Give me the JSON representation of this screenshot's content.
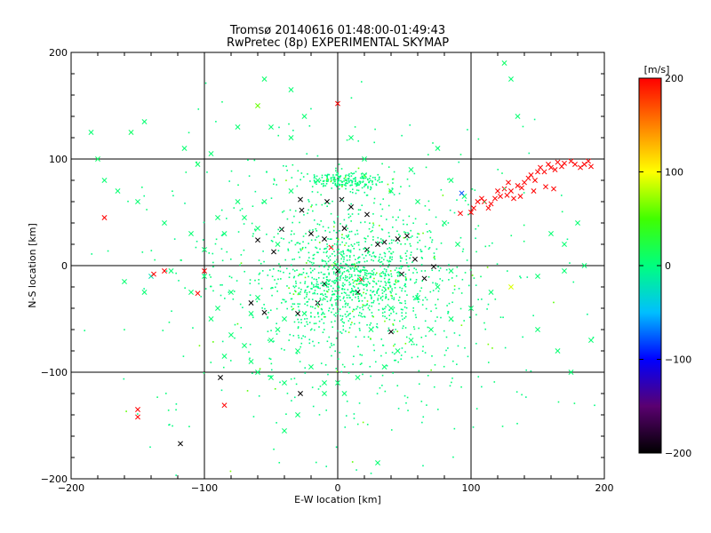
{
  "chart_data": {
    "type": "scatter",
    "title": "Tromsø 20140616 01:48:00-01:49:43",
    "subtitle": "RwPretec (8p) EXPERIMENTAL SKYMAP",
    "xlabel": "E-W location [km]",
    "ylabel": "N-S location [km]",
    "xlim": [
      -200,
      200
    ],
    "ylim": [
      -200,
      200
    ],
    "xticks": [
      "−200",
      "−100",
      "0",
      "100",
      "200"
    ],
    "yticks": [
      "−200",
      "−100",
      "0",
      "100",
      "200"
    ],
    "xtick_values": [
      -200,
      -100,
      0,
      100,
      200
    ],
    "ytick_values": [
      -200,
      -100,
      0,
      100,
      200
    ],
    "grid_lines": [
      -100,
      0,
      100
    ],
    "colorbar": {
      "label": "[m/s]",
      "range": [
        -200,
        200
      ],
      "tick_values": [
        200,
        100,
        0,
        -100,
        -200
      ],
      "tick_labels": [
        "200",
        "100",
        "0",
        "−100",
        "−200"
      ],
      "colormap": [
        "#000000",
        "#5a0070",
        "#0000ff",
        "#00bfff",
        "#00ff7f",
        "#40ff00",
        "#ffff00",
        "#ff8000",
        "#ff0000"
      ]
    },
    "series": [
      {
        "marker": "x",
        "note_values": "velocity in m/s",
        "points": [
          [
            -155,
            125,
            10
          ],
          [
            -145,
            135,
            5
          ],
          [
            -185,
            125,
            5
          ],
          [
            -115,
            110,
            5
          ],
          [
            -95,
            105,
            5
          ],
          [
            -105,
            95,
            8
          ],
          [
            -75,
            130,
            5
          ],
          [
            -55,
            175,
            8
          ],
          [
            -35,
            165,
            5
          ],
          [
            -60,
            150,
            60
          ],
          [
            -50,
            130,
            5
          ],
          [
            -35,
            120,
            5
          ],
          [
            -25,
            140,
            5
          ],
          [
            0,
            152,
            200
          ],
          [
            10,
            120,
            5
          ],
          [
            20,
            100,
            5
          ],
          [
            55,
            90,
            5
          ],
          [
            75,
            110,
            5
          ],
          [
            85,
            80,
            5
          ],
          [
            95,
            65,
            5
          ],
          [
            125,
            190,
            10
          ],
          [
            135,
            140,
            5
          ],
          [
            130,
            175,
            5
          ],
          [
            -180,
            100,
            10
          ],
          [
            -175,
            80,
            5
          ],
          [
            -165,
            70,
            5
          ],
          [
            -150,
            60,
            5
          ],
          [
            -130,
            40,
            5
          ],
          [
            -110,
            30,
            5
          ],
          [
            -90,
            45,
            5
          ],
          [
            -75,
            60,
            5
          ],
          [
            -60,
            35,
            5
          ],
          [
            -45,
            20,
            5
          ],
          [
            -140,
            -10,
            -20
          ],
          [
            -125,
            -5,
            5
          ],
          [
            -100,
            -10,
            5
          ],
          [
            -80,
            -25,
            5
          ],
          [
            -90,
            -40,
            5
          ],
          [
            -60,
            -30,
            5
          ],
          [
            -40,
            -50,
            5
          ],
          [
            -175,
            45,
            200
          ],
          [
            -138,
            -8,
            200
          ],
          [
            -100,
            -5,
            200
          ],
          [
            -160,
            -15,
            5
          ],
          [
            -145,
            -25,
            5
          ],
          [
            -65,
            -45,
            5
          ],
          [
            -50,
            -70,
            5
          ],
          [
            -30,
            -80,
            5
          ],
          [
            -20,
            -95,
            5
          ],
          [
            -10,
            -110,
            5
          ],
          [
            5,
            -120,
            5
          ],
          [
            15,
            -105,
            5
          ],
          [
            35,
            -95,
            5
          ],
          [
            45,
            -80,
            5
          ],
          [
            55,
            -70,
            5
          ],
          [
            70,
            -60,
            5
          ],
          [
            85,
            -50,
            5
          ],
          [
            100,
            -40,
            5
          ],
          [
            115,
            -25,
            5
          ],
          [
            130,
            -20,
            90
          ],
          [
            150,
            -10,
            5
          ],
          [
            170,
            -5,
            5
          ],
          [
            185,
            0,
            5
          ],
          [
            180,
            40,
            5
          ],
          [
            170,
            20,
            5
          ],
          [
            160,
            30,
            5
          ],
          [
            150,
            -60,
            5
          ],
          [
            165,
            -80,
            5
          ],
          [
            175,
            -100,
            5
          ],
          [
            190,
            -70,
            5
          ],
          [
            -40,
            -155,
            5
          ],
          [
            -30,
            -140,
            5
          ],
          [
            -10,
            -120,
            5
          ],
          [
            0,
            -110,
            5
          ],
          [
            30,
            -185,
            5
          ],
          [
            -150,
            -135,
            200
          ],
          [
            -150,
            -142,
            200
          ],
          [
            -118,
            -167,
            -200
          ],
          [
            -88,
            -105,
            -200
          ],
          [
            -28,
            -120,
            -200
          ],
          [
            -30,
            -45,
            -200
          ],
          [
            -10,
            -17,
            -200
          ],
          [
            3,
            62,
            -200
          ],
          [
            22,
            15,
            -200
          ],
          [
            40,
            -62,
            -200
          ],
          [
            58,
            6,
            -200
          ],
          [
            72,
            -1,
            -200
          ],
          [
            -27,
            52,
            -200
          ],
          [
            93,
            68,
            -80
          ],
          [
            92,
            49,
            200
          ],
          [
            18,
            -13,
            200
          ],
          [
            -5,
            17,
            200
          ],
          [
            -25,
            -45,
            5
          ],
          [
            -45,
            -60,
            5
          ],
          [
            -70,
            -75,
            5
          ],
          [
            -85,
            -85,
            5
          ],
          [
            -60,
            -100,
            5
          ],
          [
            -40,
            -110,
            5
          ],
          [
            25,
            -60,
            5
          ],
          [
            40,
            -40,
            5
          ],
          [
            60,
            -30,
            5
          ],
          [
            75,
            -20,
            5
          ],
          [
            85,
            -5,
            5
          ],
          [
            90,
            20,
            5
          ],
          [
            80,
            40,
            5
          ],
          [
            60,
            60,
            5
          ],
          [
            40,
            70,
            5
          ],
          [
            20,
            85,
            5
          ],
          [
            -15,
            80,
            5
          ],
          [
            -35,
            70,
            5
          ],
          [
            -55,
            60,
            5
          ],
          [
            -70,
            45,
            5
          ],
          [
            -85,
            30,
            5
          ],
          [
            -100,
            15,
            5
          ],
          [
            -110,
            -25,
            5
          ],
          [
            -95,
            -50,
            5
          ],
          [
            -80,
            -65,
            5
          ],
          [
            -65,
            -90,
            5
          ],
          [
            -50,
            -105,
            5
          ],
          [
            100,
            50,
            200
          ],
          [
            102,
            54,
            200
          ],
          [
            110,
            60,
            200
          ],
          [
            115,
            58,
            200
          ],
          [
            108,
            63,
            200
          ],
          [
            118,
            63,
            200
          ],
          [
            122,
            65,
            200
          ],
          [
            120,
            70,
            200
          ],
          [
            125,
            72,
            200
          ],
          [
            128,
            78,
            200
          ],
          [
            130,
            70,
            200
          ],
          [
            135,
            75,
            200
          ],
          [
            138,
            73,
            200
          ],
          [
            140,
            78,
            200
          ],
          [
            143,
            82,
            200
          ],
          [
            145,
            85,
            200
          ],
          [
            148,
            80,
            200
          ],
          [
            150,
            88,
            200
          ],
          [
            152,
            92,
            200
          ],
          [
            155,
            88,
            200
          ],
          [
            158,
            95,
            200
          ],
          [
            160,
            92,
            200
          ],
          [
            163,
            90,
            200
          ],
          [
            165,
            97,
            200
          ],
          [
            168,
            93,
            200
          ],
          [
            170,
            96,
            200
          ],
          [
            175,
            98,
            200
          ],
          [
            178,
            95,
            200
          ],
          [
            182,
            92,
            200
          ],
          [
            185,
            95,
            200
          ],
          [
            188,
            98,
            200
          ],
          [
            190,
            93,
            200
          ],
          [
            156,
            74,
            200
          ],
          [
            162,
            72,
            200
          ],
          [
            147,
            70,
            200
          ],
          [
            137,
            65,
            200
          ],
          [
            132,
            63,
            200
          ],
          [
            127,
            66,
            200
          ],
          [
            113,
            54,
            200
          ],
          [
            105,
            60,
            200
          ],
          [
            -105,
            -26,
            200
          ],
          [
            -85,
            -131,
            200
          ],
          [
            -130,
            -5,
            200
          ],
          [
            -65,
            -35,
            -200
          ],
          [
            -55,
            -44,
            -200
          ],
          [
            10,
            55,
            -200
          ],
          [
            -20,
            30,
            -200
          ],
          [
            -10,
            25,
            -200
          ],
          [
            0,
            -5,
            -200
          ],
          [
            15,
            -25,
            -200
          ],
          [
            5,
            35,
            -200
          ],
          [
            -15,
            -35,
            -200
          ],
          [
            30,
            20,
            -200
          ],
          [
            35,
            22,
            -200
          ],
          [
            45,
            25,
            -200
          ],
          [
            52,
            28,
            -200
          ],
          [
            -42,
            34,
            -200
          ],
          [
            -48,
            13,
            -200
          ],
          [
            -28,
            62,
            -200
          ],
          [
            -8,
            60,
            -200
          ],
          [
            22,
            48,
            -200
          ],
          [
            -60,
            24,
            -200
          ],
          [
            48,
            -8,
            -200
          ],
          [
            65,
            -12,
            -200
          ]
        ]
      }
    ]
  }
}
